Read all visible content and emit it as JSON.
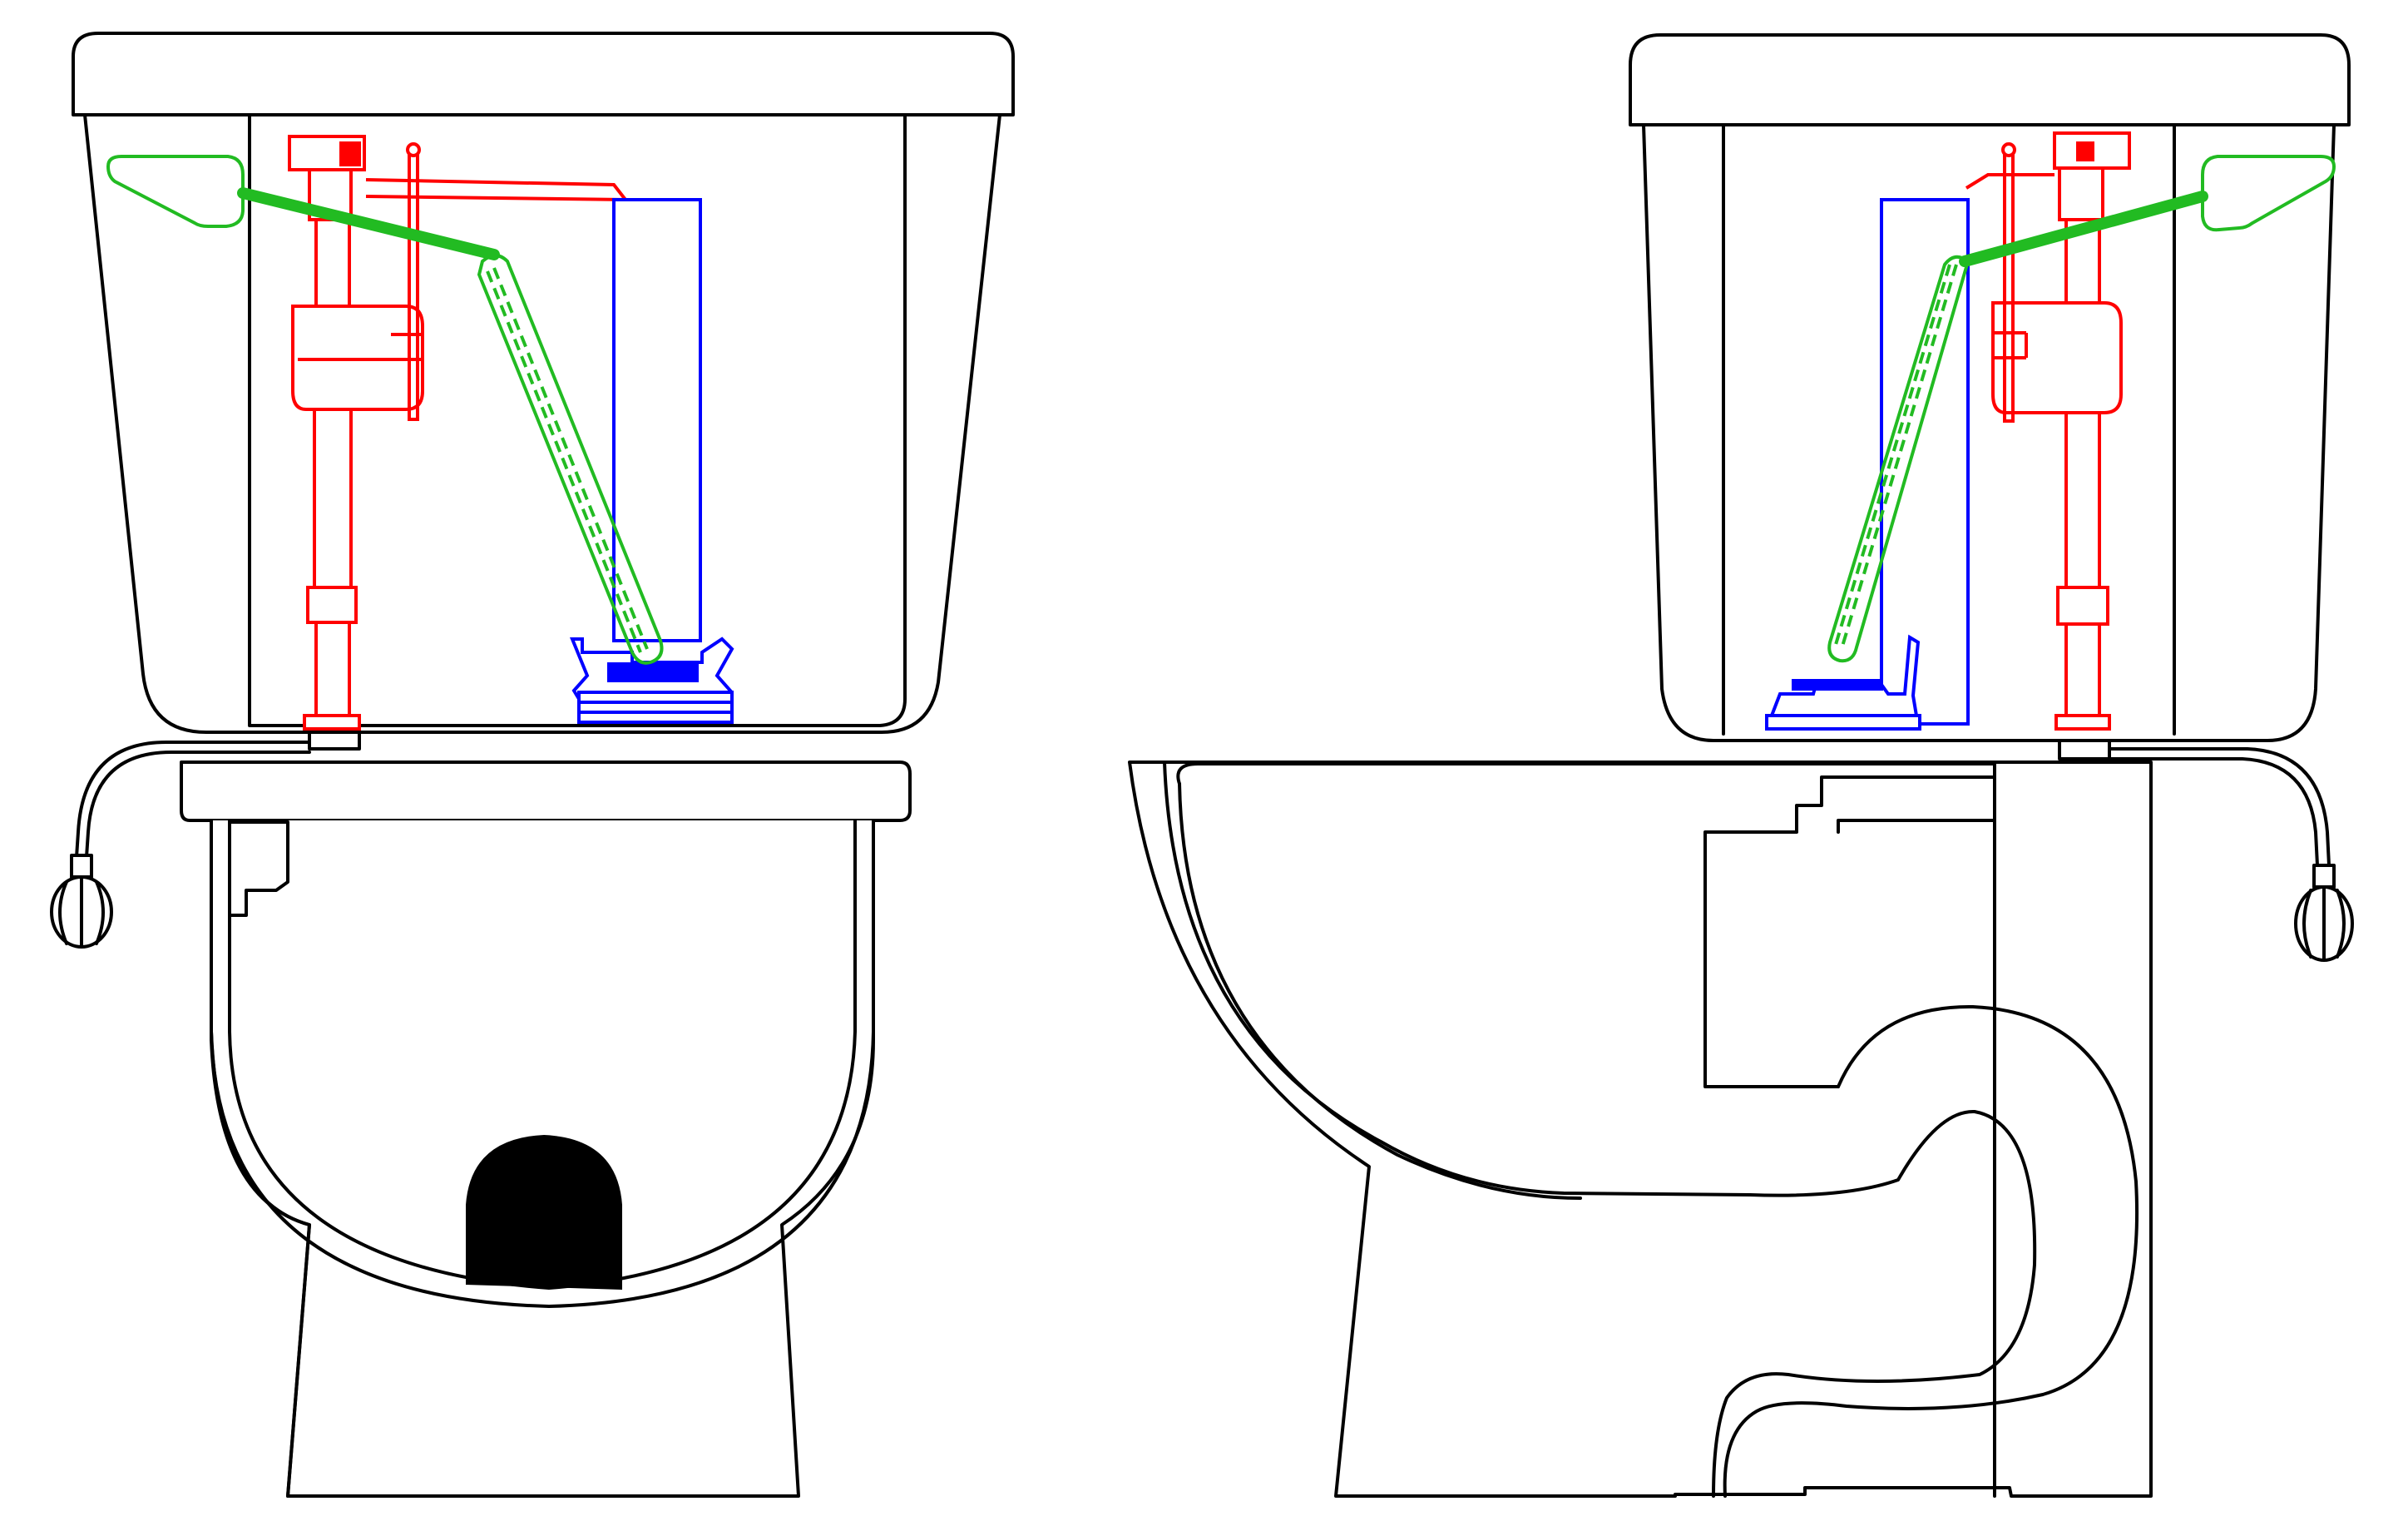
{
  "colors": {
    "outline": "#000000",
    "fill_valve": "#ff0000",
    "flush_valve": "#0000ff",
    "linkage": "#22bb22",
    "trap_fill": "#000000"
  },
  "views": [
    {
      "name": "front-view"
    },
    {
      "name": "side-view"
    }
  ],
  "icons": [
    "shutoff-valve-icon",
    "flush-handle-icon",
    "fill-valve-icon",
    "flapper-icon",
    "chain-icon"
  ]
}
